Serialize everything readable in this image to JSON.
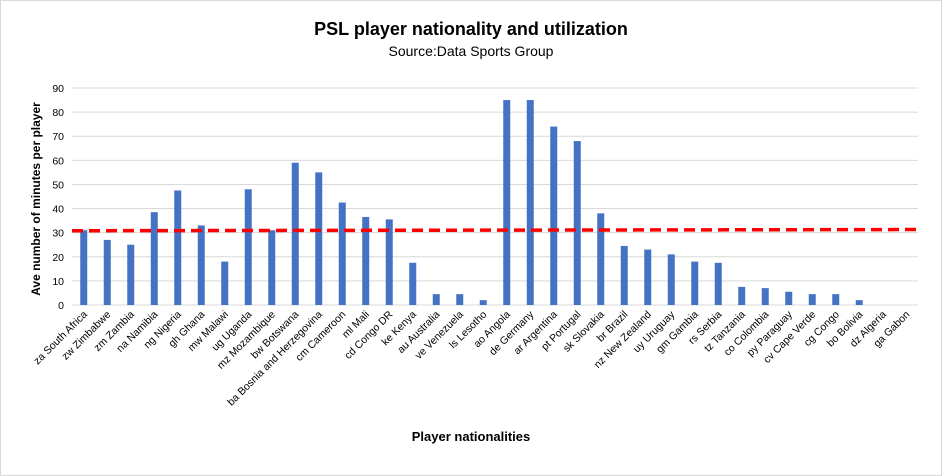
{
  "chart_data": {
    "type": "bar",
    "title": "PSL player nationality  and utilization",
    "subtitle": "Source:Data Sports Group",
    "xlabel": "Player nationalities",
    "ylabel": "Ave number of minutes per player",
    "ylim": [
      0,
      90
    ],
    "yticks": [
      0,
      10,
      20,
      30,
      40,
      50,
      60,
      70,
      80,
      90
    ],
    "grid": true,
    "categories": [
      "za South Africa",
      "zw Zimbabwe",
      "zm Zambia",
      "na Namibia",
      "ng Nigeria",
      "gh Ghana",
      "mw Malawi",
      "ug Uganda",
      "mz Mozambique",
      "bw Botswana",
      "ba Bosnia and Herzegovina",
      "cm Cameroon",
      "ml Mali",
      "cd Congo DR",
      "ke Kenya",
      "au Australia",
      "ve Venezuela",
      "ls Lesotho",
      "ao Angola",
      "de Germany",
      "ar Argentina",
      "pt Portugal",
      "sk Slovakia",
      "br Brazil",
      "nz New Zealand",
      "uy Uruguay",
      "gm Gambia",
      "rs Serbia",
      "tz Tanzania",
      "co Colombia",
      "py Paraguay",
      "cv Cape Verde",
      "cg Congo",
      "bo Bolivia",
      "dz Algeria",
      "ga Gabon"
    ],
    "values": [
      31,
      27,
      25,
      38.5,
      47.5,
      33,
      18,
      48,
      31,
      59,
      55,
      42.5,
      36.5,
      35.5,
      17.5,
      4.5,
      4.5,
      2,
      85,
      85,
      74,
      68,
      38,
      24.5,
      23,
      21,
      18,
      17.5,
      7.5,
      7,
      5.5,
      4.5,
      4.5,
      2,
      0,
      0
    ],
    "trendline": {
      "style": "dashed",
      "start": 30.8,
      "end": 31.3
    },
    "colors": {
      "bar": "#4472c4",
      "trendline": "#ff0000",
      "grid": "#d9d9d9"
    }
  }
}
